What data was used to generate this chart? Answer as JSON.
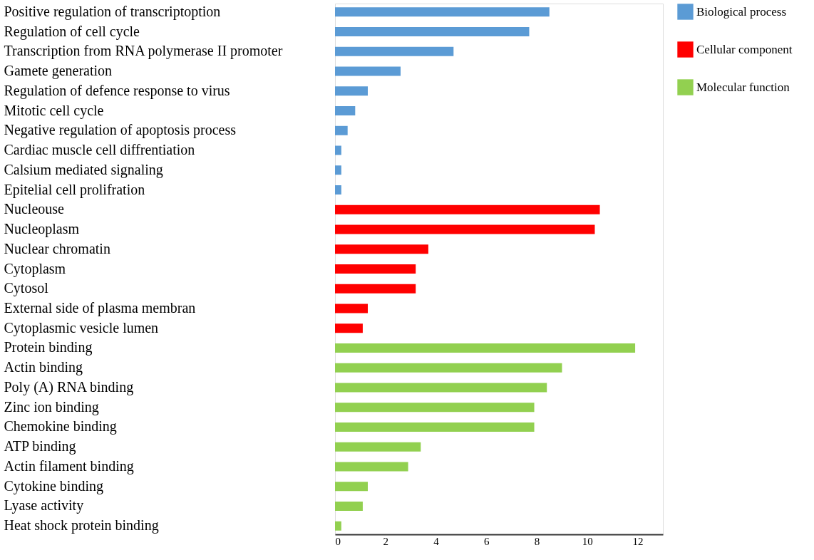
{
  "chart_data": {
    "type": "bar",
    "orientation": "horizontal",
    "categories": [
      "Positive regulation of transcriptoption",
      "Regulation of cell cycle",
      "Transcription from RNA polymerase II promoter",
      "Gamete generation",
      "Regulation of defence response to virus",
      "Mitotic cell cycle",
      "Negative regulation of apoptosis process",
      "Cardiac muscle cell diffrentiation",
      "Calsium mediated signaling",
      "Epitelial cell prolifration",
      "Nucleouse",
      "Nucleoplasm",
      "Nuclear chromatin",
      "Cytoplasm",
      "Cytosol",
      "External side of plasma membran",
      "Cytoplasmic vesicle lumen",
      "Protein binding",
      "Actin binding",
      "Poly (A) RNA binding",
      "Zinc ion binding",
      "Chemokine binding",
      "ATP binding",
      "Actin filament binding",
      "Cytokine binding",
      "Lyase activity",
      "Heat shock protein binding"
    ],
    "series": [
      {
        "name": "Biological process",
        "color": "#5b9bd5",
        "values": [
          8.5,
          7.7,
          4.7,
          2.6,
          1.3,
          0.8,
          0.5,
          0.25,
          0.25,
          0.25,
          null,
          null,
          null,
          null,
          null,
          null,
          null,
          null,
          null,
          null,
          null,
          null,
          null,
          null,
          null,
          null,
          null
        ]
      },
      {
        "name": "Cellular component",
        "color": "#ff0000",
        "values": [
          null,
          null,
          null,
          null,
          null,
          null,
          null,
          null,
          null,
          null,
          10.5,
          10.3,
          3.7,
          3.2,
          3.2,
          1.3,
          1.1,
          null,
          null,
          null,
          null,
          null,
          null,
          null,
          null,
          null,
          null
        ]
      },
      {
        "name": "Molecular function",
        "color": "#92d050",
        "values": [
          null,
          null,
          null,
          null,
          null,
          null,
          null,
          null,
          null,
          null,
          null,
          null,
          null,
          null,
          null,
          null,
          null,
          11.9,
          9.0,
          8.4,
          7.9,
          7.9,
          3.4,
          2.9,
          1.3,
          1.1,
          0.25
        ]
      }
    ],
    "xlim": [
      0,
      13
    ],
    "xticks": [
      0,
      2,
      4,
      6,
      8,
      10,
      12
    ],
    "grid": false,
    "legend": "right"
  }
}
